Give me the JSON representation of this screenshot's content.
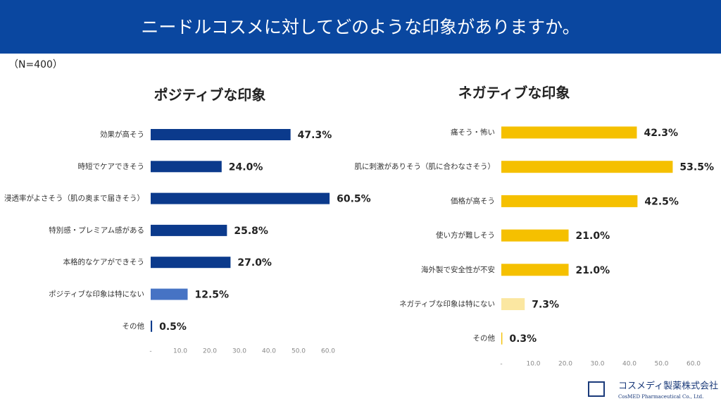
{
  "header": {
    "title": "ニードルコスメに対してどのような印象がありますか。"
  },
  "note": "（N=400）",
  "chart_data": [
    {
      "type": "bar",
      "orientation": "horizontal",
      "title": "ポジティブな印象",
      "categories": [
        "効果が高そう",
        "時短でケアできそう",
        "浸透率がよさそう（肌の奥まで届きそう）",
        "特別感・プレミアム感がある",
        "本格的なケアができそう",
        "ポジティブな印象は特にない",
        "その他"
      ],
      "values": [
        47.3,
        24.0,
        60.5,
        25.8,
        27.0,
        12.5,
        0.5
      ],
      "value_labels": [
        "47.3%",
        "24.0%",
        "60.5%",
        "25.8%",
        "27.0%",
        "12.5%",
        "0.5%"
      ],
      "colors": [
        "#0b3a8c",
        "#0b3a8c",
        "#0b3a8c",
        "#0b3a8c",
        "#0b3a8c",
        "#4673c4",
        "#0b3a8c"
      ],
      "xlim": [
        0,
        60
      ],
      "xticks": [
        {
          "value": 0,
          "label": "-"
        },
        {
          "value": 10,
          "label": "10.0"
        },
        {
          "value": 20,
          "label": "20.0"
        },
        {
          "value": 30,
          "label": "30.0"
        },
        {
          "value": 40,
          "label": "40.0"
        },
        {
          "value": 50,
          "label": "50.0"
        },
        {
          "value": 60,
          "label": "60.0"
        }
      ],
      "grid": false
    },
    {
      "type": "bar",
      "orientation": "horizontal",
      "title": "ネガティブな印象",
      "categories": [
        "痛そう・怖い",
        "肌に刺激がありそう（肌に合わなさそう）",
        "価格が高そう",
        "使い方が難しそう",
        "海外製で安全性が不安",
        "ネガティブな印象は特にない",
        "その他"
      ],
      "values": [
        42.3,
        53.5,
        42.5,
        21.0,
        21.0,
        7.3,
        0.3
      ],
      "value_labels": [
        "42.3%",
        "53.5%",
        "42.5%",
        "21.0%",
        "21.0%",
        "7.3%",
        "0.3%"
      ],
      "colors": [
        "#f5c000",
        "#f5c000",
        "#f5c000",
        "#f5c000",
        "#f5c000",
        "#fbe7a1",
        "#f5c000"
      ],
      "xlim": [
        0,
        60
      ],
      "xticks": [
        {
          "value": 0,
          "label": "-"
        },
        {
          "value": 10,
          "label": "10.0"
        },
        {
          "value": 20,
          "label": "20.0"
        },
        {
          "value": 30,
          "label": "30.0"
        },
        {
          "value": 40,
          "label": "40.0"
        },
        {
          "value": 50,
          "label": "50.0"
        },
        {
          "value": 60,
          "label": "60.0"
        }
      ],
      "grid": false
    }
  ],
  "footer": {
    "company": "コスメディ製薬株式会社",
    "company_en": "CosMED Pharmaceutical Co., Ltd."
  }
}
